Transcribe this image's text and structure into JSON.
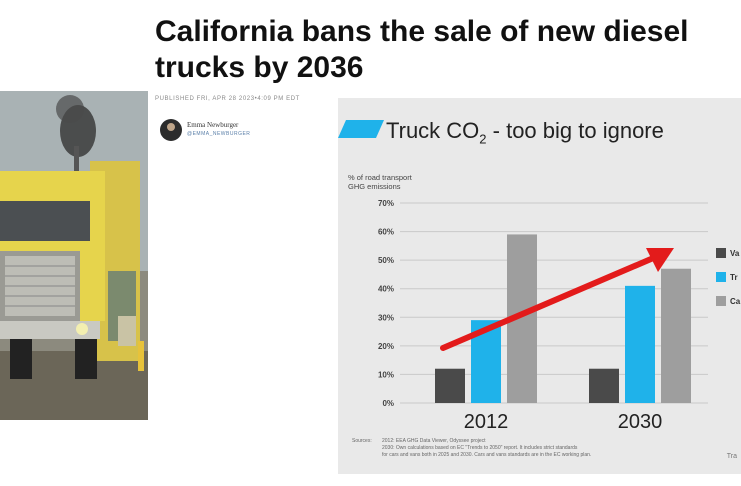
{
  "article": {
    "headline_line1": "California bans the sale of new diesel",
    "headline_line2": "trucks by 2036",
    "published": "PUBLISHED FRI, APR 28 2023•4:09 PM EDT",
    "author_name": "Emma Newburger",
    "author_handle": "@EMMA_NEWBURGER"
  },
  "colors": {
    "vans": "#4a4a4a",
    "trucks": "#1fb2ea",
    "cars": "#9e9e9e",
    "arrow": "#e31b1b",
    "title_accent": "#1fb2ea"
  },
  "chart_data": {
    "type": "bar",
    "title": "Truck CO",
    "title_sub": "2",
    "title_rest": " - too big to ignore",
    "ylabel_line1": "% of road transport",
    "ylabel_line2": "GHG emissions",
    "categories": [
      "2012",
      "2030"
    ],
    "ylim": [
      0,
      70
    ],
    "yticks": [
      "0%",
      "10%",
      "20%",
      "30%",
      "40%",
      "50%",
      "60%",
      "70%"
    ],
    "series": [
      {
        "name": "Va",
        "values": [
          12,
          12
        ]
      },
      {
        "name": "Tr",
        "values": [
          29,
          41
        ]
      },
      {
        "name": "Ca",
        "values": [
          59,
          47
        ]
      }
    ],
    "legend_position": "right",
    "grid": true,
    "trend_arrow": true,
    "sources_label": "Sources:",
    "sources_line1": "2012: EEA GHG Data Viewer, Odyssee project",
    "sources_line2": "2030: Own calculations based on EC \"Trends to 2050\" report. It includes strict standards",
    "sources_line3": "for cars and vans both in 2025 and 2030. Cars and vans standards are in the EC working plan.",
    "corner_mark": "Tra"
  }
}
